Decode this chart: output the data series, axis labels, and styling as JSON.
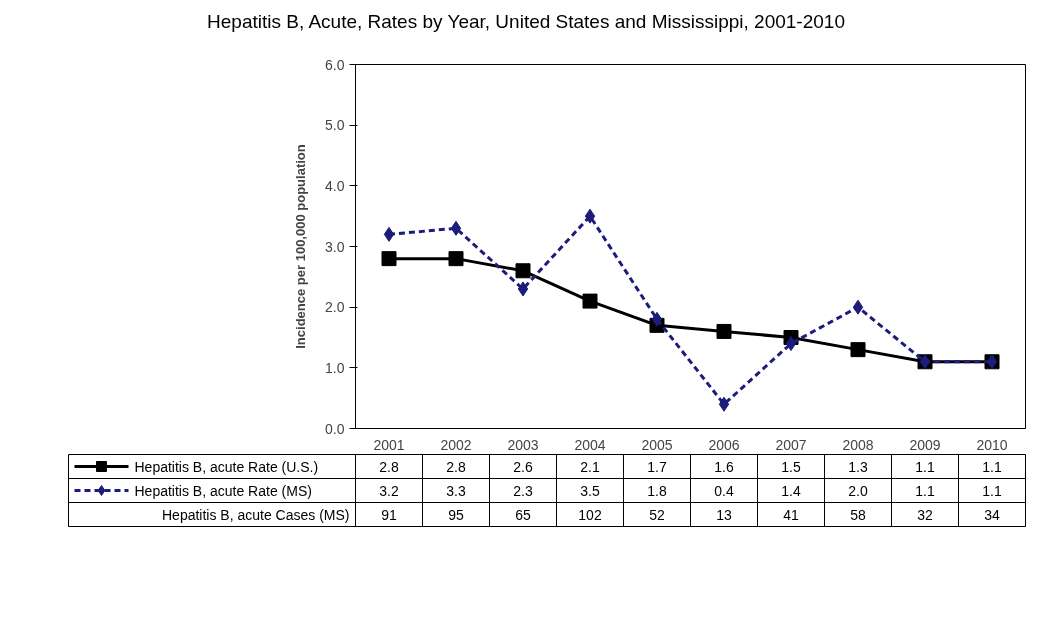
{
  "chart_data": {
    "type": "line",
    "title": "Hepatitis B, Acute, Rates by Year, United States and Mississippi, 2001-2010",
    "ylabel": "Incidence per 100,000 population",
    "categories": [
      "2001",
      "2002",
      "2003",
      "2004",
      "2005",
      "2006",
      "2007",
      "2008",
      "2009",
      "2010"
    ],
    "series": [
      {
        "name": "Hepatitis B, acute Rate (U.S.)",
        "color": "#000000",
        "marker": "square",
        "line_style": "solid",
        "values": [
          2.8,
          2.8,
          2.6,
          2.1,
          1.7,
          1.6,
          1.5,
          1.3,
          1.1,
          1.1
        ]
      },
      {
        "name": "Hepatitis B, acute Rate (MS)",
        "color": "#1c1c7a",
        "marker": "diamond",
        "line_style": "dashed",
        "values": [
          3.2,
          3.3,
          2.3,
          3.5,
          1.8,
          0.4,
          1.4,
          2.0,
          1.1,
          1.1
        ],
        "value_labels": [
          "3.2",
          "3.3",
          "2.3",
          "3.5",
          "1.8",
          "0.4",
          "1.4",
          "2.0",
          "1.1",
          "1.1"
        ]
      }
    ],
    "annotations": [
      "Hepatitis B, acute Cases (MS)",
      "91",
      "95",
      "65",
      "102",
      "52",
      "13",
      "41",
      "58",
      "32",
      "34"
    ],
    "ylim": [
      0,
      6
    ],
    "yticks": [
      {
        "value": 0,
        "label": "0.0"
      },
      {
        "value": 1,
        "label": "1.0"
      },
      {
        "value": 2,
        "label": "2.0"
      },
      {
        "value": 3,
        "label": "3.0"
      },
      {
        "value": 4,
        "label": "4.0"
      },
      {
        "value": 5,
        "label": "5.0"
      },
      {
        "value": 6,
        "label": "6.0"
      }
    ],
    "grid": false,
    "legend": "bottom",
    "data_labels": true
  }
}
